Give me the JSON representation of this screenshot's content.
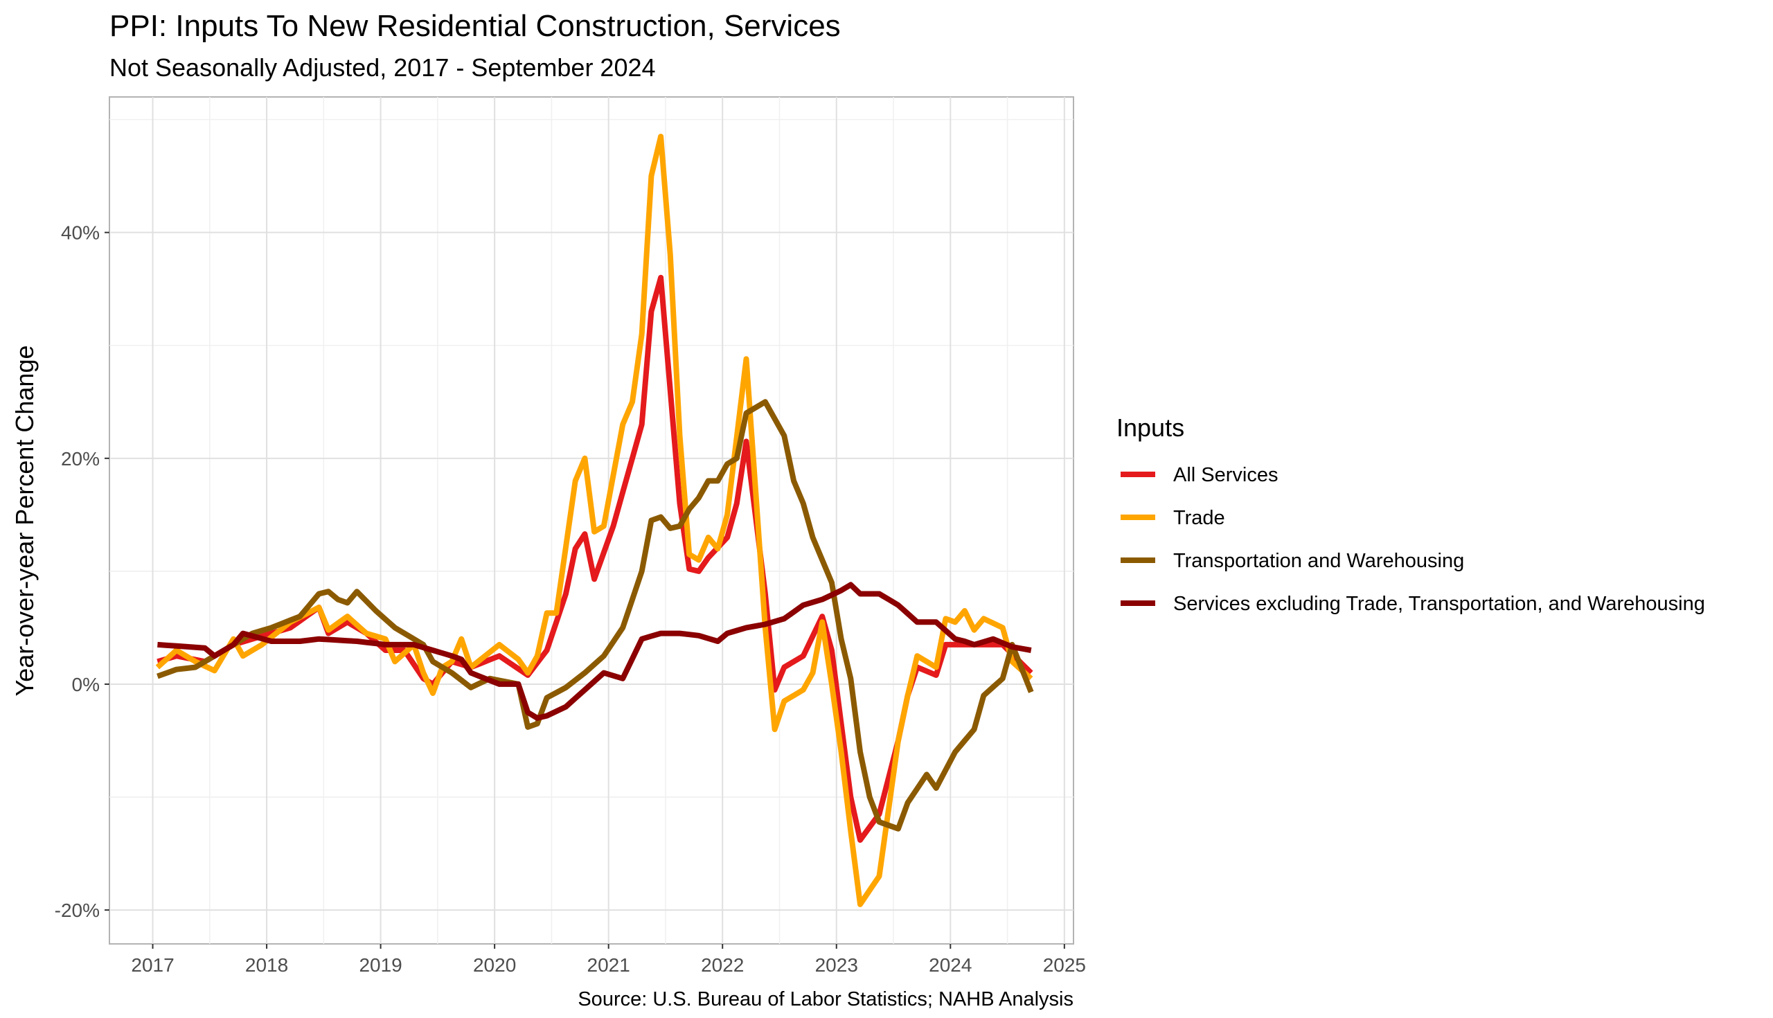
{
  "chart_data": {
    "type": "line",
    "title": "PPI: Inputs To New Residential Construction, Services",
    "subtitle": "Not Seasonally Adjusted, 2017 - September 2024",
    "xlabel": "",
    "ylabel": "Year-over-year Percent Change",
    "caption": "Source: U.S. Bureau of Labor Statistics; NAHB Analysis",
    "xlim": [
      2016.62,
      2025.08
    ],
    "ylim": [
      -23,
      52
    ],
    "x_ticks": [
      2017,
      2018,
      2019,
      2020,
      2021,
      2022,
      2023,
      2024,
      2025
    ],
    "x_tick_labels": [
      "2017",
      "2018",
      "2019",
      "2020",
      "2021",
      "2022",
      "2023",
      "2024",
      "2025"
    ],
    "y_ticks": [
      -20,
      0,
      20,
      40
    ],
    "y_tick_labels": [
      "-20%",
      "0%",
      "20%",
      "40%"
    ],
    "grid": true,
    "legend": {
      "title": "Inputs",
      "position": "right"
    },
    "x_start": "2017-01",
    "x_end": "2024-09",
    "series": [
      {
        "name": "All Services",
        "color": "#e41a1c",
        "anchors": [
          [
            "2017-01",
            2.0
          ],
          [
            "2017-03",
            2.5
          ],
          [
            "2017-06",
            2.0
          ],
          [
            "2017-09",
            3.5
          ],
          [
            "2018-01",
            4.5
          ],
          [
            "2018-03",
            5.0
          ],
          [
            "2018-06",
            6.8
          ],
          [
            "2018-07",
            4.5
          ],
          [
            "2018-09",
            5.5
          ],
          [
            "2018-11",
            4.5
          ],
          [
            "2019-01",
            3.0
          ],
          [
            "2019-03",
            3.0
          ],
          [
            "2019-05",
            0.5
          ],
          [
            "2019-06",
            0.0
          ],
          [
            "2019-08",
            2.0
          ],
          [
            "2019-10",
            1.5
          ],
          [
            "2020-01",
            2.5
          ],
          [
            "2020-04",
            0.8
          ],
          [
            "2020-06",
            3.0
          ],
          [
            "2020-08",
            8.0
          ],
          [
            "2020-09",
            12.0
          ],
          [
            "2020-10",
            13.3
          ],
          [
            "2020-11",
            9.3
          ],
          [
            "2021-01",
            14.0
          ],
          [
            "2021-04",
            23.0
          ],
          [
            "2021-05",
            33.0
          ],
          [
            "2021-06",
            36.0
          ],
          [
            "2021-07",
            26.0
          ],
          [
            "2021-08",
            16.0
          ],
          [
            "2021-09",
            10.2
          ],
          [
            "2021-10",
            10.0
          ],
          [
            "2021-11",
            11.2
          ],
          [
            "2022-01",
            13.0
          ],
          [
            "2022-02",
            16.0
          ],
          [
            "2022-03",
            21.5
          ],
          [
            "2022-05",
            8.0
          ],
          [
            "2022-06",
            -0.5
          ],
          [
            "2022-07",
            1.5
          ],
          [
            "2022-09",
            2.5
          ],
          [
            "2022-11",
            6.0
          ],
          [
            "2022-12",
            3.0
          ],
          [
            "2023-02",
            -10.0
          ],
          [
            "2023-03",
            -13.8
          ],
          [
            "2023-05",
            -11.5
          ],
          [
            "2023-07",
            -5.0
          ],
          [
            "2023-08",
            -1.0
          ],
          [
            "2023-09",
            1.5
          ],
          [
            "2023-11",
            0.8
          ],
          [
            "2023-12",
            3.5
          ],
          [
            "2024-03",
            3.5
          ],
          [
            "2024-06",
            3.5
          ],
          [
            "2024-09",
            1.0
          ]
        ]
      },
      {
        "name": "Trade",
        "color": "#ffa500",
        "anchors": [
          [
            "2017-01",
            1.5
          ],
          [
            "2017-03",
            3.0
          ],
          [
            "2017-05",
            2.0
          ],
          [
            "2017-07",
            1.2
          ],
          [
            "2017-09",
            4.0
          ],
          [
            "2017-10",
            2.5
          ],
          [
            "2017-12",
            3.5
          ],
          [
            "2018-03",
            5.5
          ],
          [
            "2018-06",
            6.8
          ],
          [
            "2018-07",
            4.8
          ],
          [
            "2018-09",
            6.0
          ],
          [
            "2018-11",
            4.5
          ],
          [
            "2019-01",
            4.0
          ],
          [
            "2019-02",
            2.0
          ],
          [
            "2019-04",
            3.5
          ],
          [
            "2019-05",
            1.0
          ],
          [
            "2019-06",
            -0.8
          ],
          [
            "2019-07",
            1.5
          ],
          [
            "2019-08",
            2.0
          ],
          [
            "2019-09",
            4.0
          ],
          [
            "2019-10",
            1.5
          ],
          [
            "2020-01",
            3.5
          ],
          [
            "2020-03",
            2.2
          ],
          [
            "2020-04",
            1.0
          ],
          [
            "2020-05",
            2.5
          ],
          [
            "2020-06",
            6.3
          ],
          [
            "2020-07",
            6.3
          ],
          [
            "2020-09",
            18.0
          ],
          [
            "2020-10",
            20.0
          ],
          [
            "2020-11",
            13.5
          ],
          [
            "2020-12",
            14.0
          ],
          [
            "2021-02",
            23.0
          ],
          [
            "2021-03",
            25.0
          ],
          [
            "2021-04",
            31.0
          ],
          [
            "2021-05",
            45.0
          ],
          [
            "2021-06",
            48.5
          ],
          [
            "2021-07",
            38.0
          ],
          [
            "2021-08",
            22.0
          ],
          [
            "2021-09",
            11.5
          ],
          [
            "2021-10",
            11.0
          ],
          [
            "2021-11",
            13.0
          ],
          [
            "2021-12",
            12.0
          ],
          [
            "2022-01",
            15.0
          ],
          [
            "2022-03",
            28.8
          ],
          [
            "2022-04",
            17.0
          ],
          [
            "2022-05",
            5.0
          ],
          [
            "2022-06",
            -4.0
          ],
          [
            "2022-07",
            -1.5
          ],
          [
            "2022-09",
            -0.5
          ],
          [
            "2022-10",
            1.0
          ],
          [
            "2022-11",
            5.5
          ],
          [
            "2022-12",
            0.0
          ],
          [
            "2023-01",
            -6.0
          ],
          [
            "2023-02",
            -13.0
          ],
          [
            "2023-03",
            -19.5
          ],
          [
            "2023-05",
            -17.0
          ],
          [
            "2023-07",
            -5.0
          ],
          [
            "2023-08",
            -1.0
          ],
          [
            "2023-09",
            2.5
          ],
          [
            "2023-11",
            1.5
          ],
          [
            "2023-12",
            5.8
          ],
          [
            "2024-01",
            5.5
          ],
          [
            "2024-02",
            6.5
          ],
          [
            "2024-03",
            4.8
          ],
          [
            "2024-04",
            5.8
          ],
          [
            "2024-06",
            5.0
          ],
          [
            "2024-07",
            2.0
          ],
          [
            "2024-09",
            0.5
          ]
        ]
      },
      {
        "name": "Transportation and Warehousing",
        "color": "#8b5a00",
        "anchors": [
          [
            "2017-01",
            0.7
          ],
          [
            "2017-03",
            1.3
          ],
          [
            "2017-05",
            1.5
          ],
          [
            "2017-07",
            2.5
          ],
          [
            "2017-09",
            3.5
          ],
          [
            "2017-11",
            4.5
          ],
          [
            "2018-01",
            5.0
          ],
          [
            "2018-04",
            6.0
          ],
          [
            "2018-06",
            8.0
          ],
          [
            "2018-07",
            8.2
          ],
          [
            "2018-08",
            7.5
          ],
          [
            "2018-09",
            7.2
          ],
          [
            "2018-10",
            8.2
          ],
          [
            "2018-12",
            6.5
          ],
          [
            "2019-02",
            5.0
          ],
          [
            "2019-04",
            4.0
          ],
          [
            "2019-05",
            3.5
          ],
          [
            "2019-06",
            2.0
          ],
          [
            "2019-08",
            1.0
          ],
          [
            "2019-10",
            -0.3
          ],
          [
            "2019-12",
            0.5
          ],
          [
            "2020-03",
            0.0
          ],
          [
            "2020-04",
            -3.8
          ],
          [
            "2020-05",
            -3.5
          ],
          [
            "2020-06",
            -1.2
          ],
          [
            "2020-08",
            -0.3
          ],
          [
            "2020-10",
            1.0
          ],
          [
            "2020-12",
            2.5
          ],
          [
            "2021-02",
            5.0
          ],
          [
            "2021-04",
            10.0
          ],
          [
            "2021-05",
            14.5
          ],
          [
            "2021-06",
            14.8
          ],
          [
            "2021-07",
            13.8
          ],
          [
            "2021-08",
            14.0
          ],
          [
            "2021-09",
            15.5
          ],
          [
            "2021-10",
            16.5
          ],
          [
            "2021-11",
            18.0
          ],
          [
            "2021-12",
            18.0
          ],
          [
            "2022-01",
            19.5
          ],
          [
            "2022-02",
            20.0
          ],
          [
            "2022-03",
            24.0
          ],
          [
            "2022-04",
            24.5
          ],
          [
            "2022-05",
            25.0
          ],
          [
            "2022-07",
            22.0
          ],
          [
            "2022-08",
            18.0
          ],
          [
            "2022-09",
            16.0
          ],
          [
            "2022-10",
            13.0
          ],
          [
            "2022-12",
            9.0
          ],
          [
            "2023-01",
            4.0
          ],
          [
            "2023-02",
            0.5
          ],
          [
            "2023-03",
            -6.0
          ],
          [
            "2023-04",
            -10.0
          ],
          [
            "2023-05",
            -12.2
          ],
          [
            "2023-07",
            -12.8
          ],
          [
            "2023-08",
            -10.5
          ],
          [
            "2023-10",
            -8.0
          ],
          [
            "2023-11",
            -9.2
          ],
          [
            "2024-01",
            -6.0
          ],
          [
            "2024-03",
            -4.0
          ],
          [
            "2024-04",
            -1.0
          ],
          [
            "2024-06",
            0.5
          ],
          [
            "2024-07",
            3.5
          ],
          [
            "2024-09",
            -0.7
          ]
        ]
      },
      {
        "name": "Services excluding Trade, Transportation, and Warehousing",
        "color": "#8b0000",
        "anchors": [
          [
            "2017-01",
            3.5
          ],
          [
            "2017-06",
            3.2
          ],
          [
            "2017-07",
            2.5
          ],
          [
            "2017-09",
            3.5
          ],
          [
            "2017-10",
            4.5
          ],
          [
            "2018-01",
            3.8
          ],
          [
            "2018-04",
            3.8
          ],
          [
            "2018-06",
            4.0
          ],
          [
            "2018-10",
            3.8
          ],
          [
            "2019-01",
            3.5
          ],
          [
            "2019-04",
            3.5
          ],
          [
            "2019-06",
            3.0
          ],
          [
            "2019-08",
            2.5
          ],
          [
            "2019-09",
            2.2
          ],
          [
            "2019-10",
            1.0
          ],
          [
            "2020-01",
            0.0
          ],
          [
            "2020-03",
            0.0
          ],
          [
            "2020-04",
            -2.5
          ],
          [
            "2020-05",
            -3.0
          ],
          [
            "2020-06",
            -2.8
          ],
          [
            "2020-08",
            -2.0
          ],
          [
            "2020-10",
            -0.5
          ],
          [
            "2020-12",
            1.0
          ],
          [
            "2021-02",
            0.5
          ],
          [
            "2021-04",
            4.0
          ],
          [
            "2021-06",
            4.5
          ],
          [
            "2021-08",
            4.5
          ],
          [
            "2021-10",
            4.3
          ],
          [
            "2021-12",
            3.8
          ],
          [
            "2022-01",
            4.5
          ],
          [
            "2022-03",
            5.0
          ],
          [
            "2022-05",
            5.3
          ],
          [
            "2022-07",
            5.8
          ],
          [
            "2022-09",
            7.0
          ],
          [
            "2022-11",
            7.5
          ],
          [
            "2023-01",
            8.3
          ],
          [
            "2023-02",
            8.8
          ],
          [
            "2023-03",
            8.0
          ],
          [
            "2023-05",
            8.0
          ],
          [
            "2023-07",
            7.0
          ],
          [
            "2023-09",
            5.5
          ],
          [
            "2023-11",
            5.5
          ],
          [
            "2024-01",
            4.0
          ],
          [
            "2024-02",
            3.8
          ],
          [
            "2024-03",
            3.5
          ],
          [
            "2024-05",
            4.0
          ],
          [
            "2024-07",
            3.3
          ],
          [
            "2024-09",
            3.0
          ]
        ]
      }
    ]
  }
}
